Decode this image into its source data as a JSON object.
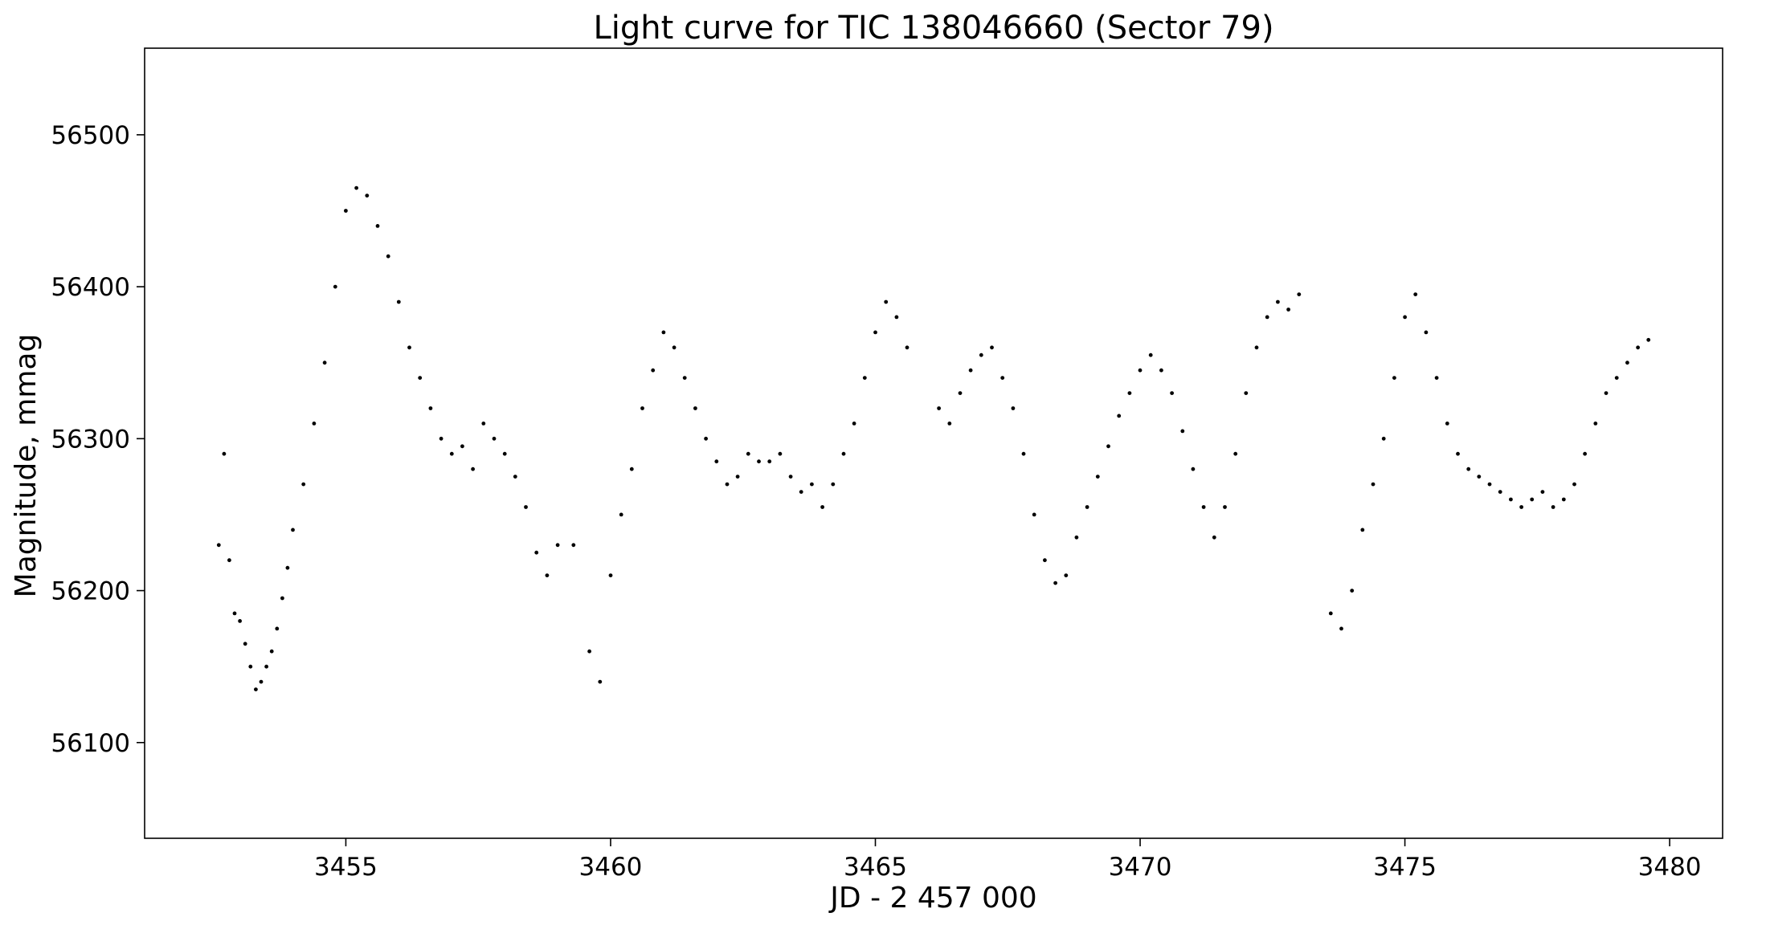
{
  "chart_data": {
    "type": "scatter",
    "title": "Light curve for TIC 138046660 (Sector 79)",
    "xlabel": "JD - 2 457 000",
    "ylabel": "Magnitude, mmag",
    "xlim": [
      3451.2,
      3481.0
    ],
    "ylim": [
      56037,
      56557
    ],
    "x_ticks": [
      3455,
      3460,
      3465,
      3470,
      3475,
      3480
    ],
    "y_ticks": [
      56100,
      56200,
      56300,
      56400,
      56500
    ],
    "grid": false,
    "legend": "none",
    "marker_color": "#000000",
    "series": [
      {
        "points": [
          [
            3452.6,
            56230
          ],
          [
            3452.7,
            56290
          ],
          [
            3452.8,
            56220
          ],
          [
            3452.9,
            56185
          ],
          [
            3453.0,
            56180
          ],
          [
            3453.1,
            56165
          ],
          [
            3453.2,
            56150
          ],
          [
            3453.3,
            56135
          ],
          [
            3453.4,
            56140
          ],
          [
            3453.5,
            56150
          ],
          [
            3453.6,
            56160
          ],
          [
            3453.7,
            56175
          ],
          [
            3453.8,
            56195
          ],
          [
            3453.9,
            56215
          ],
          [
            3454.0,
            56240
          ],
          [
            3454.2,
            56270
          ],
          [
            3454.4,
            56310
          ],
          [
            3454.6,
            56350
          ],
          [
            3454.8,
            56400
          ],
          [
            3455.0,
            56450
          ],
          [
            3455.2,
            56465
          ],
          [
            3455.4,
            56460
          ],
          [
            3455.6,
            56440
          ],
          [
            3455.8,
            56420
          ],
          [
            3456.0,
            56390
          ],
          [
            3456.2,
            56360
          ],
          [
            3456.4,
            56340
          ],
          [
            3456.6,
            56320
          ],
          [
            3456.8,
            56300
          ],
          [
            3457.0,
            56290
          ],
          [
            3457.2,
            56295
          ],
          [
            3457.4,
            56280
          ],
          [
            3457.6,
            56310
          ],
          [
            3457.8,
            56300
          ],
          [
            3458.0,
            56290
          ],
          [
            3458.2,
            56275
          ],
          [
            3458.4,
            56255
          ],
          [
            3458.6,
            56225
          ],
          [
            3458.8,
            56210
          ],
          [
            3459.0,
            56230
          ],
          [
            3459.3,
            56230
          ],
          [
            3459.6,
            56160
          ],
          [
            3459.8,
            56140
          ],
          [
            3460.0,
            56210
          ],
          [
            3460.2,
            56250
          ],
          [
            3460.4,
            56280
          ],
          [
            3460.6,
            56320
          ],
          [
            3460.8,
            56345
          ],
          [
            3461.0,
            56370
          ],
          [
            3461.2,
            56360
          ],
          [
            3461.4,
            56340
          ],
          [
            3461.6,
            56320
          ],
          [
            3461.8,
            56300
          ],
          [
            3462.0,
            56285
          ],
          [
            3462.2,
            56270
          ],
          [
            3462.4,
            56275
          ],
          [
            3462.6,
            56290
          ],
          [
            3462.8,
            56285
          ],
          [
            3463.0,
            56285
          ],
          [
            3463.2,
            56290
          ],
          [
            3463.4,
            56275
          ],
          [
            3463.6,
            56265
          ],
          [
            3463.8,
            56270
          ],
          [
            3464.0,
            56255
          ],
          [
            3464.2,
            56270
          ],
          [
            3464.4,
            56290
          ],
          [
            3464.6,
            56310
          ],
          [
            3464.8,
            56340
          ],
          [
            3465.0,
            56370
          ],
          [
            3465.2,
            56390
          ],
          [
            3465.4,
            56380
          ],
          [
            3465.6,
            56360
          ],
          [
            3466.2,
            56320
          ],
          [
            3466.4,
            56310
          ],
          [
            3466.6,
            56330
          ],
          [
            3466.8,
            56345
          ],
          [
            3467.0,
            56355
          ],
          [
            3467.2,
            56360
          ],
          [
            3467.4,
            56340
          ],
          [
            3467.6,
            56320
          ],
          [
            3467.8,
            56290
          ],
          [
            3468.0,
            56250
          ],
          [
            3468.2,
            56220
          ],
          [
            3468.4,
            56205
          ],
          [
            3468.6,
            56210
          ],
          [
            3468.8,
            56235
          ],
          [
            3469.0,
            56255
          ],
          [
            3469.2,
            56275
          ],
          [
            3469.4,
            56295
          ],
          [
            3469.6,
            56315
          ],
          [
            3469.8,
            56330
          ],
          [
            3470.0,
            56345
          ],
          [
            3470.2,
            56355
          ],
          [
            3470.4,
            56345
          ],
          [
            3470.6,
            56330
          ],
          [
            3470.8,
            56305
          ],
          [
            3471.0,
            56280
          ],
          [
            3471.2,
            56255
          ],
          [
            3471.4,
            56235
          ],
          [
            3471.6,
            56255
          ],
          [
            3471.8,
            56290
          ],
          [
            3472.0,
            56330
          ],
          [
            3472.2,
            56360
          ],
          [
            3472.4,
            56380
          ],
          [
            3472.6,
            56390
          ],
          [
            3472.8,
            56385
          ],
          [
            3473.0,
            56395
          ],
          [
            3473.6,
            56185
          ],
          [
            3473.8,
            56175
          ],
          [
            3474.0,
            56200
          ],
          [
            3474.2,
            56240
          ],
          [
            3474.4,
            56270
          ],
          [
            3474.6,
            56300
          ],
          [
            3474.8,
            56340
          ],
          [
            3475.0,
            56380
          ],
          [
            3475.2,
            56395
          ],
          [
            3475.4,
            56370
          ],
          [
            3475.6,
            56340
          ],
          [
            3475.8,
            56310
          ],
          [
            3476.0,
            56290
          ],
          [
            3476.2,
            56280
          ],
          [
            3476.4,
            56275
          ],
          [
            3476.6,
            56270
          ],
          [
            3476.8,
            56265
          ],
          [
            3477.0,
            56260
          ],
          [
            3477.2,
            56255
          ],
          [
            3477.4,
            56260
          ],
          [
            3477.6,
            56265
          ],
          [
            3477.8,
            56255
          ],
          [
            3478.0,
            56260
          ],
          [
            3478.2,
            56270
          ],
          [
            3478.4,
            56290
          ],
          [
            3478.6,
            56310
          ],
          [
            3478.8,
            56330
          ],
          [
            3479.0,
            56340
          ],
          [
            3479.2,
            56350
          ],
          [
            3479.4,
            56360
          ],
          [
            3479.6,
            56365
          ]
        ]
      }
    ]
  }
}
